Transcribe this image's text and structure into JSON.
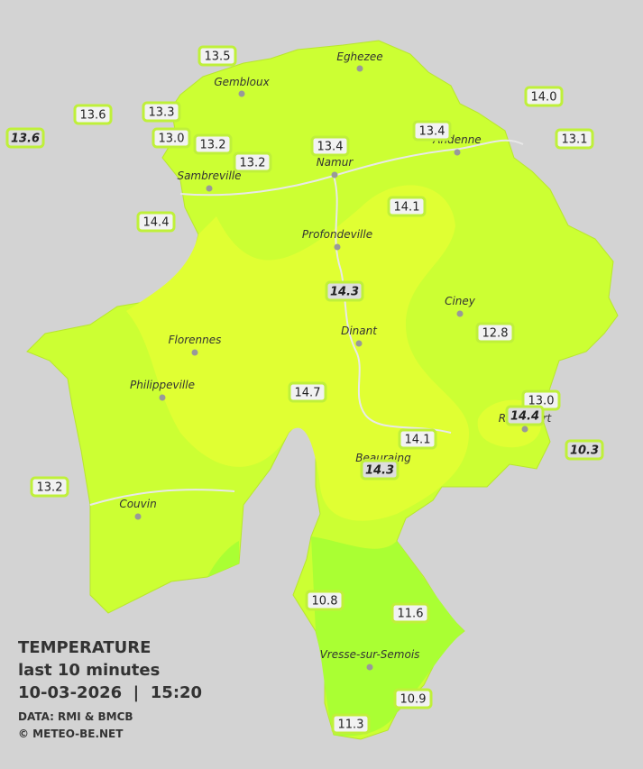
{
  "title": {
    "heading": "TEMPERATURE",
    "period": "last 10 minutes",
    "datetime": "10-03-2026  |  15:20",
    "source": "DATA: RMI & BMCB",
    "credit": "© METEO-BE.NET"
  },
  "towns": [
    "Eghezee",
    "Gembloux",
    "Andenne",
    "Namur",
    "Sambreville",
    "Profondeville",
    "Ciney",
    "Dinant",
    "Florennes",
    "Philippeville",
    "Beauraing",
    "Rochefort",
    "Couvin",
    "Vresse-sur-Semois"
  ],
  "readings": [
    {
      "label": "13.5",
      "italic": false
    },
    {
      "label": "13.6",
      "italic": false
    },
    {
      "label": "13.6",
      "italic": true
    },
    {
      "label": "13.3",
      "italic": false
    },
    {
      "label": "13.0",
      "italic": false
    },
    {
      "label": "13.2",
      "italic": false
    },
    {
      "label": "13.2",
      "italic": false
    },
    {
      "label": "13.4",
      "italic": false
    },
    {
      "label": "13.4",
      "italic": false
    },
    {
      "label": "14.0",
      "italic": false
    },
    {
      "label": "13.1",
      "italic": false
    },
    {
      "label": "14.4",
      "italic": false
    },
    {
      "label": "14.1",
      "italic": false
    },
    {
      "label": "14.3",
      "italic": true
    },
    {
      "label": "12.8",
      "italic": false
    },
    {
      "label": "14.7",
      "italic": false
    },
    {
      "label": "13.0",
      "italic": false
    },
    {
      "label": "14.4",
      "italic": true
    },
    {
      "label": "10.3",
      "italic": true
    },
    {
      "label": "14.1",
      "italic": false
    },
    {
      "label": "14.3",
      "italic": true
    },
    {
      "label": "13.2",
      "italic": false
    },
    {
      "label": "10.8",
      "italic": false
    },
    {
      "label": "11.6",
      "italic": false
    },
    {
      "label": "10.9",
      "italic": false
    },
    {
      "label": "11.3",
      "italic": false
    }
  ]
}
